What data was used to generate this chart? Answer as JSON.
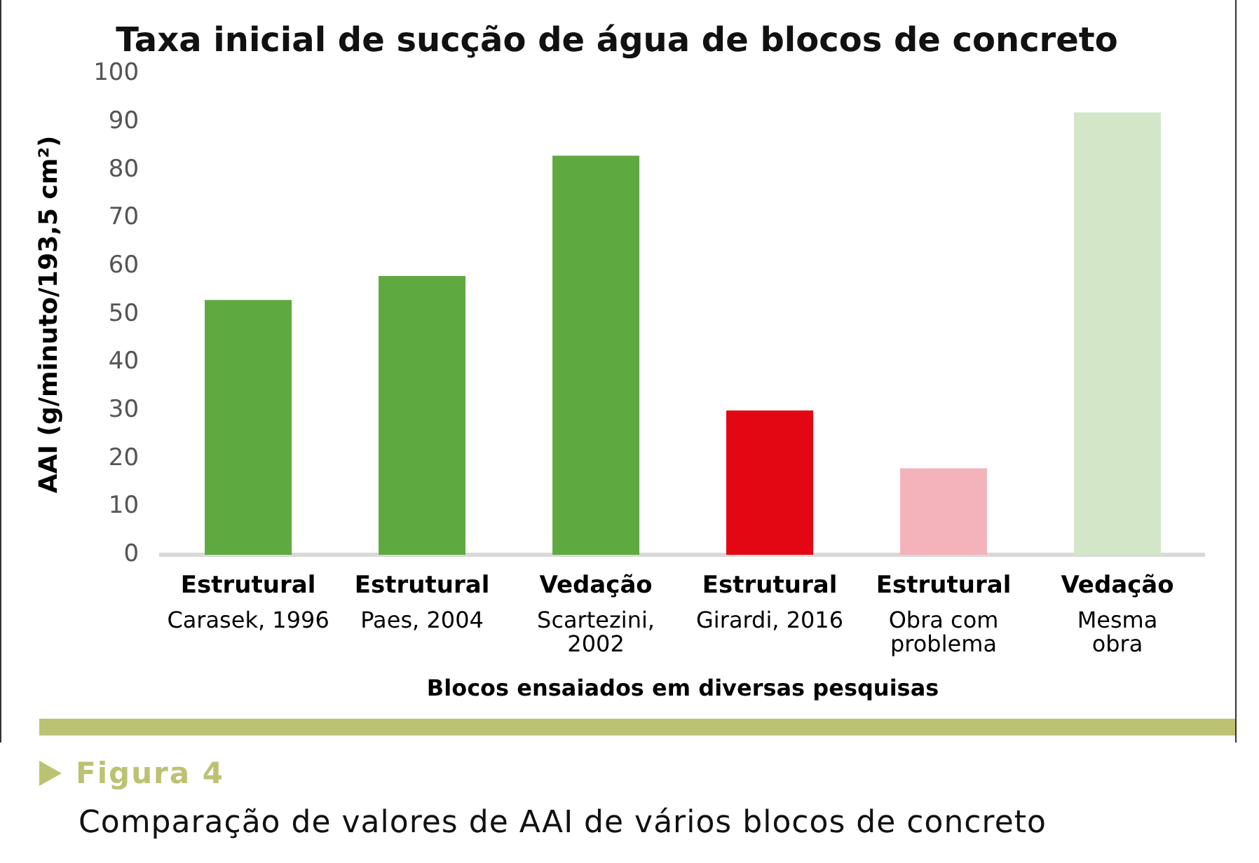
{
  "chart_data": {
    "type": "bar",
    "title": "Taxa inicial de sucção de água de blocos de concreto",
    "xlabel": "Blocos ensaiados em diversas pesquisas",
    "ylabel": "AAI (g/minuto/193,5 cm²)",
    "categories": [
      "Estrutural\nCarasek, 1996",
      "Estrutural\nPaes, 2004",
      "Vedação\nScartezini,\n2002",
      "Estrutural\nGirardi, 2016",
      "Estrutural\nObra com\nproblema",
      "Vedação\nMesma\nobra"
    ],
    "values": [
      53,
      58,
      83,
      30,
      18,
      92
    ],
    "colors": [
      "#5fa941",
      "#5fa941",
      "#5fa941",
      "#e30613",
      "#f4b3ba",
      "#d3e6c8"
    ],
    "ylim": [
      0,
      100
    ],
    "yticks": [
      0,
      10,
      20,
      30,
      40,
      50,
      60,
      70,
      80,
      90,
      100
    ],
    "grid": false,
    "legend": false,
    "annotations": [
      "Figura 4",
      "Comparação de valores de AAI de vários blocos de concreto"
    ]
  }
}
